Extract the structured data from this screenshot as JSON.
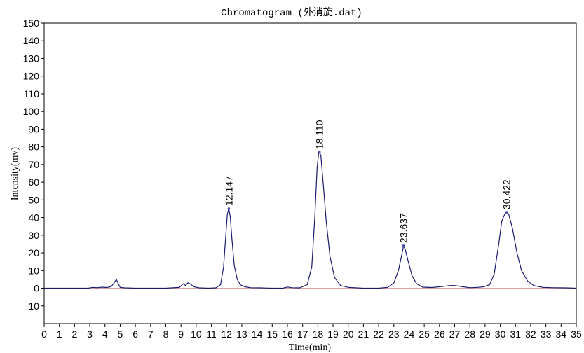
{
  "chart_data": {
    "type": "line",
    "title": "Chromatogram (外消旋.dat)",
    "xlabel": "Time(min)",
    "ylabel": "Intensity(mv)",
    "xlim": [
      0,
      35
    ],
    "ylim": [
      -20,
      150
    ],
    "x_ticks": [
      0,
      1,
      2,
      3,
      4,
      5,
      6,
      7,
      8,
      9,
      10,
      11,
      12,
      13,
      14,
      15,
      16,
      17,
      18,
      19,
      20,
      21,
      22,
      23,
      24,
      25,
      26,
      27,
      28,
      29,
      30,
      31,
      32,
      33,
      34,
      35
    ],
    "y_ticks": [
      -10,
      0,
      10,
      20,
      30,
      40,
      50,
      60,
      70,
      80,
      90,
      100,
      110,
      120,
      130,
      140,
      150
    ],
    "grid": false,
    "baseline": 0,
    "peaks": [
      {
        "label": "12.147",
        "x": 12.147,
        "y": 45
      },
      {
        "label": "18.110",
        "x": 18.11,
        "y": 77
      },
      {
        "label": "23.637",
        "x": 23.637,
        "y": 24
      },
      {
        "label": "30.422",
        "x": 30.422,
        "y": 43
      }
    ],
    "series": [
      {
        "color": "#1a1a6e",
        "x": [
          0,
          2.9,
          3.2,
          3.5,
          3.8,
          4.1,
          4.4,
          4.6,
          4.75,
          4.85,
          5.0,
          5.3,
          6.0,
          7.0,
          8.0,
          8.9,
          9.15,
          9.3,
          9.45,
          9.6,
          9.85,
          10.2,
          10.8,
          11.3,
          11.6,
          11.8,
          11.95,
          12.05,
          12.147,
          12.25,
          12.35,
          12.5,
          12.7,
          12.9,
          13.2,
          13.6,
          14.2,
          15.0,
          15.7,
          16.0,
          16.3,
          16.8,
          17.3,
          17.6,
          17.8,
          17.95,
          18.05,
          18.11,
          18.2,
          18.35,
          18.55,
          18.8,
          19.1,
          19.5,
          20.0,
          21.0,
          22.0,
          22.6,
          23.0,
          23.3,
          23.5,
          23.637,
          23.75,
          23.95,
          24.2,
          24.5,
          24.9,
          25.5,
          26.2,
          26.7,
          27.0,
          27.4,
          28.0,
          28.5,
          28.9,
          29.3,
          29.6,
          29.9,
          30.1,
          30.3,
          30.422,
          30.55,
          30.8,
          31.1,
          31.4,
          31.8,
          32.2,
          32.8,
          33.5,
          34.3,
          35.0
        ],
        "y": [
          0,
          0,
          0.5,
          0.3,
          0.6,
          0.4,
          0.9,
          3,
          5,
          3,
          0.5,
          0.2,
          0,
          0,
          0,
          0.5,
          2.5,
          1.5,
          3,
          2.5,
          0.8,
          0.2,
          0,
          0.2,
          2,
          12,
          30,
          42,
          45,
          40,
          28,
          13,
          5,
          2,
          0.8,
          0.3,
          0.2,
          0,
          0,
          0.7,
          0.3,
          0.2,
          2,
          12,
          40,
          68,
          76,
          77,
          75,
          60,
          38,
          18,
          6,
          1.5,
          0.5,
          0,
          0,
          0.5,
          3,
          10,
          18,
          24,
          22,
          15,
          7,
          2.5,
          0.6,
          0.4,
          1,
          1.5,
          1.5,
          1,
          0.3,
          0.5,
          0.8,
          2,
          8,
          25,
          38,
          42,
          43,
          42,
          34,
          20,
          10,
          4,
          1.5,
          0.5,
          0.3,
          0.2,
          0
        ]
      }
    ]
  }
}
